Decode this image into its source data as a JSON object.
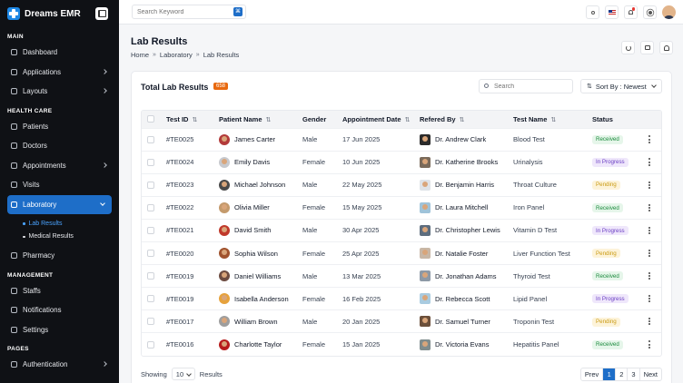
{
  "app": {
    "brand": "Dreams EMR"
  },
  "sidebar": {
    "sections": [
      {
        "title": "MAIN",
        "items": [
          {
            "label": "Dashboard",
            "chevron": false
          },
          {
            "label": "Applications",
            "chevron": true
          },
          {
            "label": "Layouts",
            "chevron": true
          }
        ]
      },
      {
        "title": "HEALTH CARE",
        "items": [
          {
            "label": "Patients",
            "chevron": false
          },
          {
            "label": "Doctors",
            "chevron": false
          },
          {
            "label": "Appointments",
            "chevron": true
          },
          {
            "label": "Visits",
            "chevron": false
          },
          {
            "label": "Laboratory",
            "chevron": true,
            "active": true,
            "children": [
              {
                "label": "Lab Results",
                "active": true
              },
              {
                "label": "Medical Results",
                "active": false
              }
            ]
          },
          {
            "label": "Pharmacy",
            "chevron": false
          }
        ]
      },
      {
        "title": "MANAGEMENT",
        "items": [
          {
            "label": "Staffs",
            "chevron": false
          },
          {
            "label": "Notifications",
            "chevron": false
          },
          {
            "label": "Settings",
            "chevron": false
          }
        ]
      },
      {
        "title": "PAGES",
        "items": [
          {
            "label": "Authentication",
            "chevron": true
          }
        ]
      }
    ]
  },
  "topbar": {
    "search_placeholder": "Search Keyword"
  },
  "header": {
    "title": "Lab Results",
    "breadcrumb": [
      "Home",
      "Laboratory",
      "Lab Results"
    ]
  },
  "card": {
    "title": "Total Lab Results",
    "count": "658",
    "search_placeholder": "Search",
    "sort_label": "Sort By",
    "sort_value": "Newest"
  },
  "table": {
    "columns": [
      "Test ID",
      "Patient Name",
      "Gender",
      "Appointment Date",
      "Refered By",
      "Test Name",
      "Status"
    ],
    "rows": [
      {
        "id": "#TE0025",
        "patient": "James Carter",
        "gender": "Male",
        "date": "17 Jun 2025",
        "doctor": "Dr. Andrew Clark",
        "test": "Blood Test",
        "status": "Received",
        "pcolor": "#b33a3a",
        "dcolor": "#2b2b2b"
      },
      {
        "id": "#TE0024",
        "patient": "Emily Davis",
        "gender": "Female",
        "date": "10 Jun 2025",
        "doctor": "Dr. Katherine Brooks",
        "test": "Urinalysis",
        "status": "In Progress",
        "pcolor": "#c7c9ce",
        "dcolor": "#7a6a5a"
      },
      {
        "id": "#TE0023",
        "patient": "Michael Johnson",
        "gender": "Male",
        "date": "22 May 2025",
        "doctor": "Dr. Benjamin Harris",
        "test": "Throat Culture",
        "status": "Pending",
        "pcolor": "#4a4a4a",
        "dcolor": "#dfe3e8"
      },
      {
        "id": "#TE0022",
        "patient": "Olivia Miller",
        "gender": "Female",
        "date": "15 May 2025",
        "doctor": "Dr. Laura Mitchell",
        "test": "Iron Panel",
        "status": "Received",
        "pcolor": "#c49a6c",
        "dcolor": "#9fc3d9"
      },
      {
        "id": "#TE0021",
        "patient": "David Smith",
        "gender": "Male",
        "date": "30 Apr 2025",
        "doctor": "Dr. Christopher Lewis",
        "test": "Vitamin D Test",
        "status": "In Progress",
        "pcolor": "#c0392b",
        "dcolor": "#5d6d7e"
      },
      {
        "id": "#TE0020",
        "patient": "Sophia Wilson",
        "gender": "Female",
        "date": "25 Apr 2025",
        "doctor": "Dr. Natalie Foster",
        "test": "Liver Function Test",
        "status": "Pending",
        "pcolor": "#a0522d",
        "dcolor": "#c8b7a6"
      },
      {
        "id": "#TE0019",
        "patient": "Daniel Williams",
        "gender": "Male",
        "date": "13 Mar 2025",
        "doctor": "Dr. Jonathan Adams",
        "test": "Thyroid Test",
        "status": "Received",
        "pcolor": "#6d4c41",
        "dcolor": "#8d99a6"
      },
      {
        "id": "#TE0019",
        "patient": "Isabella Anderson",
        "gender": "Female",
        "date": "16 Feb 2025",
        "doctor": "Dr. Rebecca Scott",
        "test": "Lipid Panel",
        "status": "In Progress",
        "pcolor": "#e6a23c",
        "dcolor": "#a9cbe0"
      },
      {
        "id": "#TE0017",
        "patient": "William Brown",
        "gender": "Male",
        "date": "20 Jan 2025",
        "doctor": "Dr. Samuel Turner",
        "test": "Troponin Test",
        "status": "Pending",
        "pcolor": "#9e9e9e",
        "dcolor": "#6b4f3a"
      },
      {
        "id": "#TE0016",
        "patient": "Charlotte Taylor",
        "gender": "Female",
        "date": "15 Jan 2025",
        "doctor": "Dr. Victoria Evans",
        "test": "Hepatitis Panel",
        "status": "Received",
        "pcolor": "#b71c1c",
        "dcolor": "#7f8c8d"
      }
    ]
  },
  "footer": {
    "showing_label": "Showing",
    "page_size": "10",
    "results_label": "Results",
    "prev": "Prev",
    "pages": [
      "1",
      "2",
      "3"
    ],
    "current_page": "1",
    "next": "Next"
  },
  "colors": {
    "accent": "#1e6ec8",
    "badge": "#e8690f",
    "sidebar_bg": "#0f1115"
  }
}
